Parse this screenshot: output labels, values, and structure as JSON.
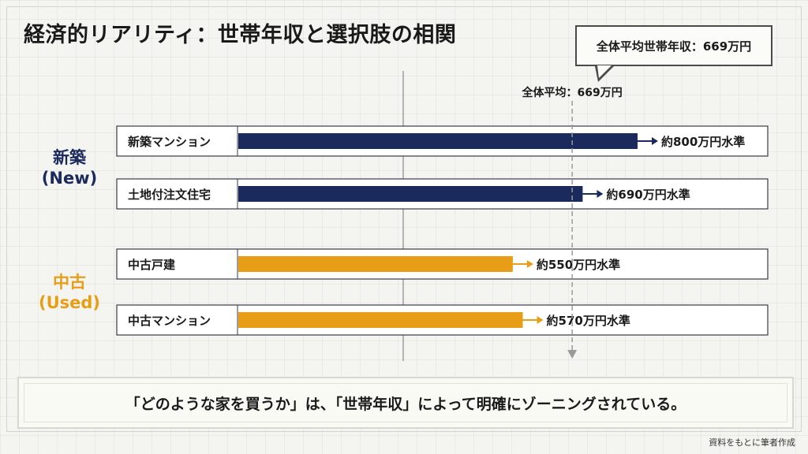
{
  "title": "経済的リアリティ：世帯年収と選択肢の相関",
  "callout": "全体平均世帯年収：669万円",
  "average_label": "全体平均：669万円",
  "groups": [
    {
      "label_line1": "新築",
      "label_line2": "(New)",
      "color": "#1a2a5c"
    },
    {
      "label_line1": "中古",
      "label_line2": "(Used)",
      "color": "#e89d16"
    }
  ],
  "chart_data": {
    "type": "bar",
    "orientation": "horizontal",
    "unit": "万円",
    "categories": [
      "新築マンション",
      "土地付注文住宅",
      "中古戸建",
      "中古マンション"
    ],
    "values": [
      800,
      690,
      550,
      570
    ],
    "value_labels": [
      "約800万円水準",
      "約690万円水準",
      "約550万円水準",
      "約570万円水準"
    ],
    "category_groups": [
      "新築 (New)",
      "新築 (New)",
      "中古 (Used)",
      "中古 (Used)"
    ],
    "reference_line": {
      "value": 669,
      "label": "全体平均：669万円"
    },
    "colors": [
      "#1a2a5c",
      "#1a2a5c",
      "#e89d16",
      "#e89d16"
    ],
    "title": "経済的リアリティ：世帯年収と選択肢の相関"
  },
  "footer": "「どのような家を買うか」は、「世帯年収」によって明確にゾーニングされている。",
  "source": "資料をもとに筆者作成"
}
